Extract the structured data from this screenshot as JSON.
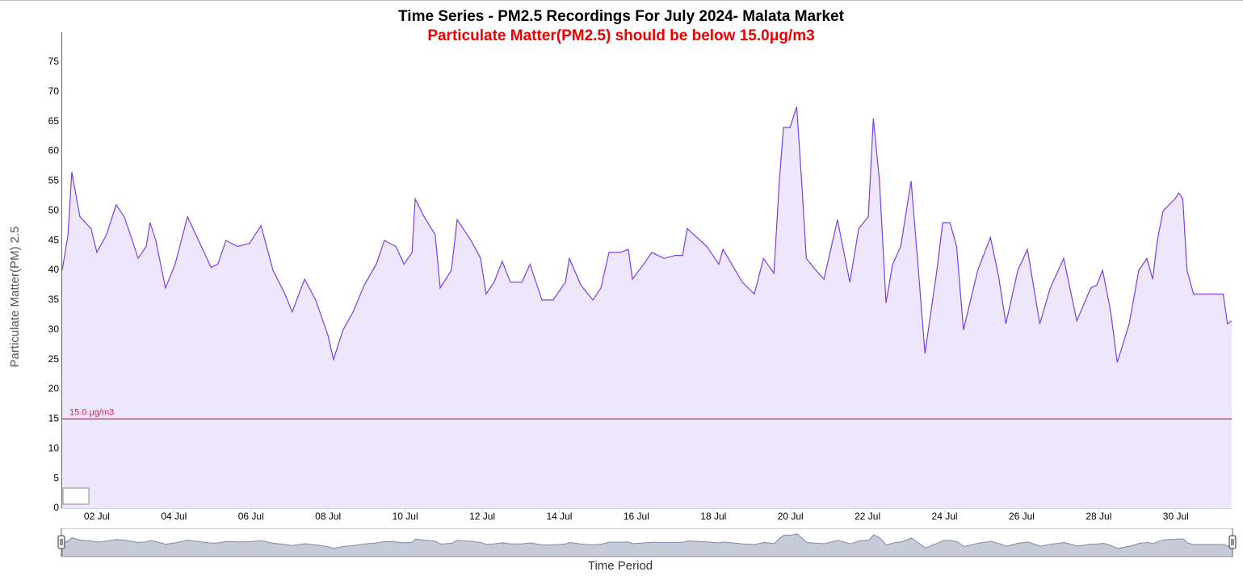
{
  "chart_data": {
    "type": "area",
    "title": "Time Series - PM2.5 Recordings For July 2024- Malata Market",
    "subtitle": "Particulate Matter(PM2.5) should be below 15.0μg/m3",
    "y_label": "Particulate Matter(PM) 2.5",
    "x_label": "Time Period",
    "x": [
      1.1,
      1.25,
      1.35,
      1.56,
      1.85,
      2.0,
      2.25,
      2.5,
      2.71,
      2.92,
      3.07,
      3.28,
      3.38,
      3.53,
      3.78,
      4.03,
      4.35,
      4.64,
      4.96,
      5.14,
      5.35,
      5.65,
      5.96,
      6.26,
      6.57,
      6.88,
      7.07,
      7.39,
      7.68,
      8.0,
      8.14,
      8.39,
      8.65,
      8.94,
      9.25,
      9.46,
      9.76,
      9.97,
      10.18,
      10.26,
      10.49,
      10.78,
      10.91,
      11.2,
      11.35,
      11.71,
      11.96,
      12.1,
      12.31,
      12.52,
      12.73,
      13.03,
      13.24,
      13.55,
      13.84,
      14.16,
      14.26,
      14.56,
      14.87,
      15.08,
      15.29,
      15.58,
      15.79,
      15.9,
      16.19,
      16.4,
      16.72,
      17.01,
      17.2,
      17.32,
      17.83,
      18.14,
      18.25,
      18.75,
      19.06,
      19.3,
      19.57,
      19.71,
      19.82,
      19.99,
      20.16,
      20.3,
      20.41,
      20.66,
      20.87,
      21.22,
      21.54,
      21.77,
      22.02,
      22.15,
      22.31,
      22.48,
      22.65,
      22.86,
      23.13,
      23.32,
      23.49,
      23.8,
      23.95,
      24.14,
      24.31,
      24.49,
      24.86,
      25.19,
      25.4,
      25.59,
      25.9,
      26.15,
      26.47,
      26.74,
      27.09,
      27.43,
      27.79,
      27.95,
      28.1,
      28.31,
      28.48,
      28.79,
      29.04,
      29.25,
      29.4,
      29.52,
      29.67,
      29.98,
      30.08,
      30.18,
      30.29,
      30.46,
      31.23,
      31.34,
      31.45
    ],
    "series": [
      {
        "name": "PM2.5",
        "color": "#7b3fe4",
        "fill": "#eee7fc",
        "values": [
          40,
          46,
          56.5,
          49,
          47,
          43,
          46,
          51,
          49,
          45,
          42,
          44,
          48,
          45,
          37,
          41,
          49,
          45,
          40.5,
          41,
          45,
          44,
          44.5,
          47.5,
          40,
          36,
          33,
          38.5,
          35,
          29,
          25,
          30,
          33,
          37.5,
          41,
          45,
          44,
          41,
          43,
          52,
          49,
          46,
          37,
          40,
          48.5,
          45,
          42,
          36,
          38,
          41.5,
          38,
          38,
          41,
          35,
          35,
          38,
          42,
          37.5,
          35,
          37,
          43,
          43,
          43.5,
          38.5,
          41,
          43,
          42,
          42.5,
          42.5,
          47,
          44,
          41,
          43.5,
          38,
          36,
          42,
          39.5,
          55,
          64,
          64,
          67.5,
          54,
          42,
          40,
          38.5,
          48.5,
          38,
          47,
          49,
          65.5,
          55,
          34.5,
          41,
          44,
          55,
          40,
          26,
          40,
          48,
          48,
          44,
          30,
          40,
          45.5,
          39,
          31,
          40,
          43.5,
          31,
          37,
          42,
          31.5,
          37,
          37.5,
          40,
          33,
          24.5,
          31,
          40,
          42,
          38.5,
          45,
          50,
          52,
          53,
          52,
          40,
          36,
          36,
          31,
          31.5
        ]
      }
    ],
    "xlim": [
      1.1,
      31.45
    ],
    "xticks": [
      {
        "value": 2,
        "label": "02 Jul"
      },
      {
        "value": 4,
        "label": "04 Jul"
      },
      {
        "value": 6,
        "label": "06 Jul"
      },
      {
        "value": 8,
        "label": "08 Jul"
      },
      {
        "value": 10,
        "label": "10 Jul"
      },
      {
        "value": 12,
        "label": "12 Jul"
      },
      {
        "value": 14,
        "label": "14 Jul"
      },
      {
        "value": 16,
        "label": "16 Jul"
      },
      {
        "value": 18,
        "label": "18 Jul"
      },
      {
        "value": 20,
        "label": "20 Jul"
      },
      {
        "value": 22,
        "label": "22 Jul"
      },
      {
        "value": 24,
        "label": "24 Jul"
      },
      {
        "value": 26,
        "label": "26 Jul"
      },
      {
        "value": 28,
        "label": "28 Jul"
      },
      {
        "value": 30,
        "label": "30 Jul"
      }
    ],
    "ylim": [
      0,
      80
    ],
    "yticks": [
      0,
      5,
      10,
      15,
      20,
      25,
      30,
      35,
      40,
      45,
      50,
      55,
      60,
      65,
      70,
      75
    ],
    "grid": false,
    "threshold": {
      "value": 15,
      "label": "15.0 μg/m3",
      "color": "#e8194b"
    },
    "navigator": true,
    "range_input": "30"
  }
}
